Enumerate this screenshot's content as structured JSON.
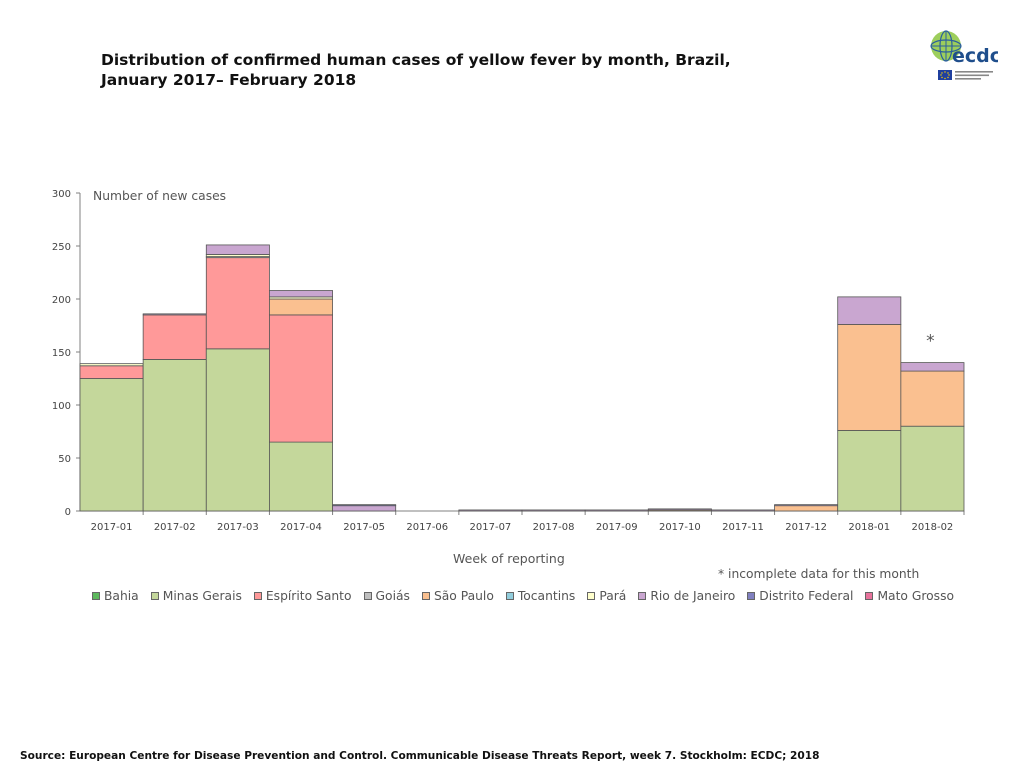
{
  "page": {
    "title_line1": "Distribution of confirmed human cases of yellow fever by month, Brazil,",
    "title_line2": "January 2017– February 2018",
    "source": "Source: European Centre for Disease Prevention and Control. Communicable Disease Threats Report, week 7. Stockholm: ECDC; 2018",
    "logo_text": "ecdc",
    "footnote": "* incomplete data for this month"
  },
  "chart_data": {
    "type": "bar",
    "stacked": true,
    "ylabel": "Number of new cases",
    "xlabel": "Week of reporting",
    "ylim": [
      0,
      300
    ],
    "yticks": [
      0,
      50,
      100,
      150,
      200,
      250,
      300
    ],
    "grid": false,
    "legend_position": "bottom",
    "categories": [
      "2017-01",
      "2017-02",
      "2017-03",
      "2017-04",
      "2017-05",
      "2017-06",
      "2017-07",
      "2017-08",
      "2017-09",
      "2017-10",
      "2017-11",
      "2017-12",
      "2018-01",
      "2018-02"
    ],
    "series": [
      {
        "name": "Bahia",
        "color": "#5cb85c",
        "values": [
          0,
          0,
          0,
          0,
          0,
          0,
          0,
          0,
          0,
          0,
          0,
          0,
          0,
          0
        ]
      },
      {
        "name": "Minas Gerais",
        "color": "#c4d79b",
        "values": [
          125,
          143,
          153,
          65,
          0,
          0,
          0,
          0,
          0,
          0,
          0,
          0,
          76,
          80
        ]
      },
      {
        "name": "Espírito Santo",
        "color": "#ff9999",
        "values": [
          12,
          42,
          86,
          120,
          0,
          0,
          0,
          0,
          0,
          0,
          0,
          0,
          0,
          0
        ]
      },
      {
        "name": "Goiás",
        "color": "#bfbfbf",
        "values": [
          0,
          0,
          1,
          0,
          0,
          0,
          0,
          0,
          0,
          0,
          0,
          0,
          0,
          0
        ]
      },
      {
        "name": "São Paulo",
        "color": "#fac090",
        "values": [
          0,
          0,
          0,
          15,
          0,
          0,
          0,
          0,
          0,
          1,
          0,
          5,
          100,
          52
        ]
      },
      {
        "name": "Tocantins",
        "color": "#92cddc",
        "values": [
          0,
          0,
          0,
          0,
          0,
          0,
          0,
          0,
          0,
          0,
          0,
          0,
          0,
          0
        ]
      },
      {
        "name": "Pará",
        "color": "#ffffcc",
        "values": [
          2,
          0,
          2,
          2,
          0,
          0,
          0,
          0,
          0,
          0,
          0,
          0,
          0,
          0
        ]
      },
      {
        "name": "Rio de Janeiro",
        "color": "#c9a6d0",
        "values": [
          0,
          1,
          9,
          6,
          5,
          0,
          1,
          1,
          1,
          1,
          1,
          1,
          26,
          8
        ]
      },
      {
        "name": "Distrito Federal",
        "color": "#8080c0",
        "values": [
          0,
          0,
          0,
          0,
          1,
          0,
          0,
          0,
          0,
          0,
          0,
          0,
          0,
          0
        ]
      },
      {
        "name": "Mato Grosso",
        "color": "#e8739c",
        "values": [
          0,
          0,
          0,
          0,
          0,
          0,
          0,
          0,
          0,
          0,
          0,
          0,
          0,
          0
        ]
      }
    ],
    "annotations": [
      {
        "text": "*",
        "category": "2018-02"
      }
    ]
  }
}
